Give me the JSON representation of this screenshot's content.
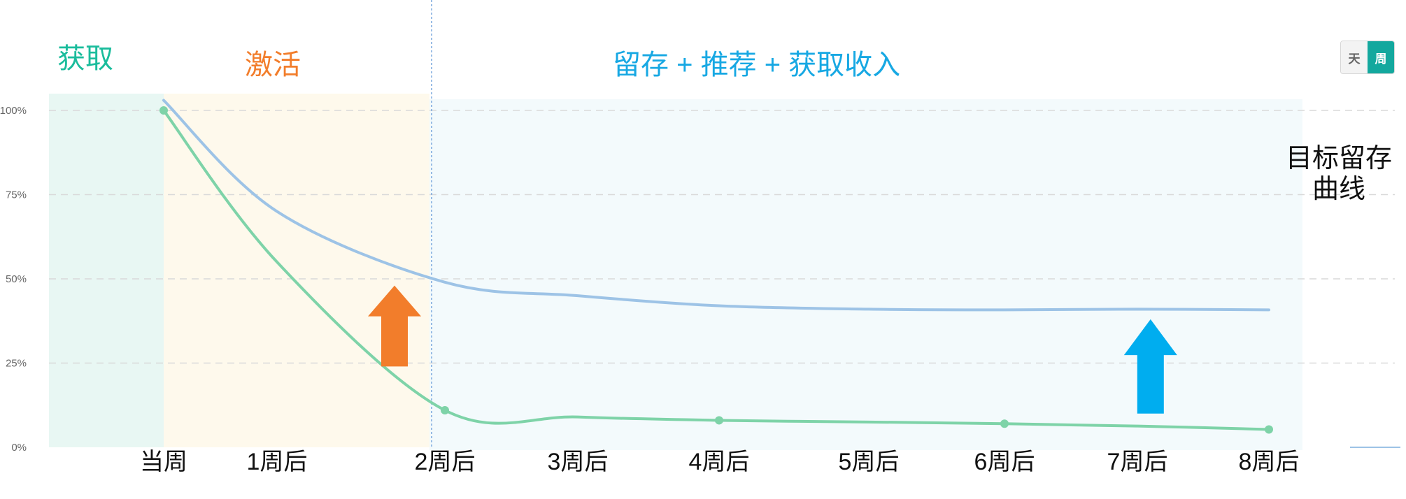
{
  "phases": {
    "acquire": {
      "label": "获取",
      "color": "#1abc9c"
    },
    "activate": {
      "label": "激活",
      "color": "#f27d2b"
    },
    "retain": {
      "label": "留存 + 推荐 + 获取收入",
      "color": "#17a8e3"
    }
  },
  "target_curve_label": "目标留存曲线",
  "toggle": {
    "day_label": "天",
    "week_label": "周",
    "selected": "周"
  },
  "chart_data": {
    "type": "line",
    "categories": [
      "当周",
      "1周后",
      "2周后",
      "3周后",
      "4周后",
      "5周后",
      "6周后",
      "7周后",
      "8周后"
    ],
    "y_ticks": [
      "0%",
      "25%",
      "50%",
      "75%",
      "100%"
    ],
    "ylim": [
      0,
      100
    ],
    "grid": true,
    "series": [
      {
        "name": "",
        "color": "#9dc3e6",
        "values": [
          103,
          70,
          49,
          45,
          42,
          41,
          40.8,
          41,
          40.8
        ]
      },
      {
        "name": "",
        "color": "#7ed3a8",
        "values": [
          100,
          55,
          11,
          9,
          8,
          7.5,
          7,
          6.3,
          5.3
        ],
        "markers": [
          0,
          2,
          4,
          6,
          8
        ]
      }
    ],
    "arrows": [
      {
        "color": "#f27d2b",
        "direction": "up",
        "x_category": 1.7,
        "from": 24,
        "to": 48
      },
      {
        "color": "#00adef",
        "direction": "up",
        "x_category": 7.1,
        "from": 10,
        "to": 38
      }
    ],
    "x_axis_ref_pos": [
      234,
      396,
      636,
      826,
      1028,
      1242,
      1436,
      1626,
      1814
    ],
    "y_axis_ref_pos": [
      640,
      519,
      398,
      278,
      158
    ]
  }
}
